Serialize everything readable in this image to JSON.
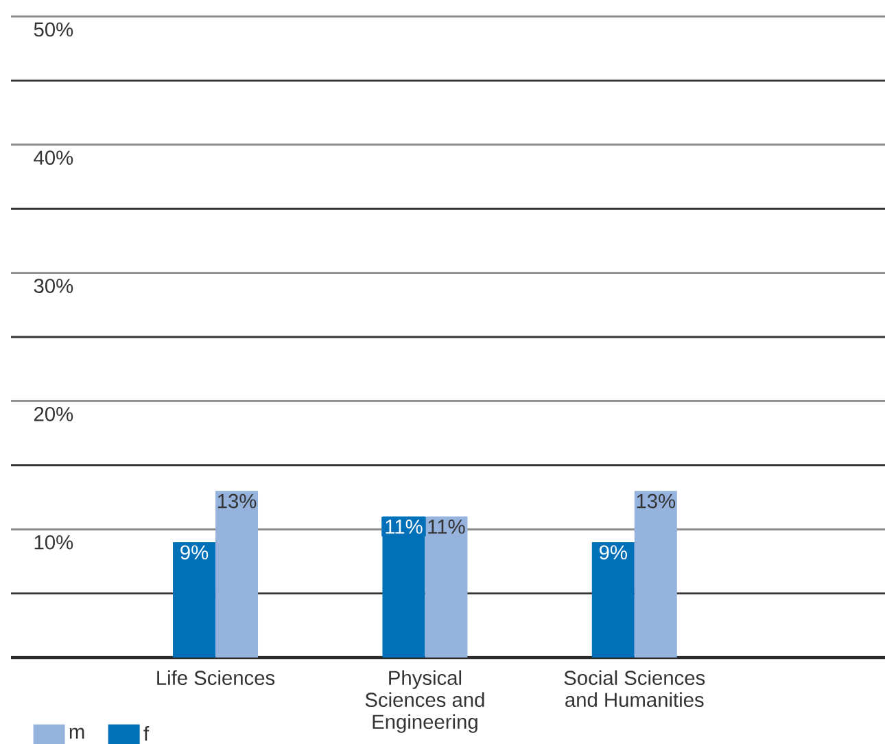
{
  "chart_data": {
    "type": "bar",
    "categories": [
      "Life Sciences",
      "Physical Sciences and Engineering",
      "Social Sciences and Humanities"
    ],
    "series": [
      {
        "name": "f",
        "color": "#0070b8",
        "values": [
          9,
          11,
          9
        ],
        "value_labels": [
          "9%",
          "11%",
          "9%"
        ]
      },
      {
        "name": "m",
        "color": "#95b3dd",
        "values": [
          13,
          11,
          13
        ],
        "value_labels": [
          "13%",
          "11%",
          "13%"
        ]
      }
    ],
    "ylim": [
      0,
      50
    ],
    "yticks": [
      {
        "value": 0,
        "label": null
      },
      {
        "value": 5,
        "label": null
      },
      {
        "value": 10,
        "label": "10%"
      },
      {
        "value": 15,
        "label": null
      },
      {
        "value": 20,
        "label": "20%"
      },
      {
        "value": 25,
        "label": null
      },
      {
        "value": 30,
        "label": "30%"
      },
      {
        "value": 35,
        "label": null
      },
      {
        "value": 40,
        "label": "40%"
      },
      {
        "value": 45,
        "label": null
      },
      {
        "value": 50,
        "label": "50%"
      }
    ],
    "grid": "y",
    "legend": "bottom left"
  }
}
